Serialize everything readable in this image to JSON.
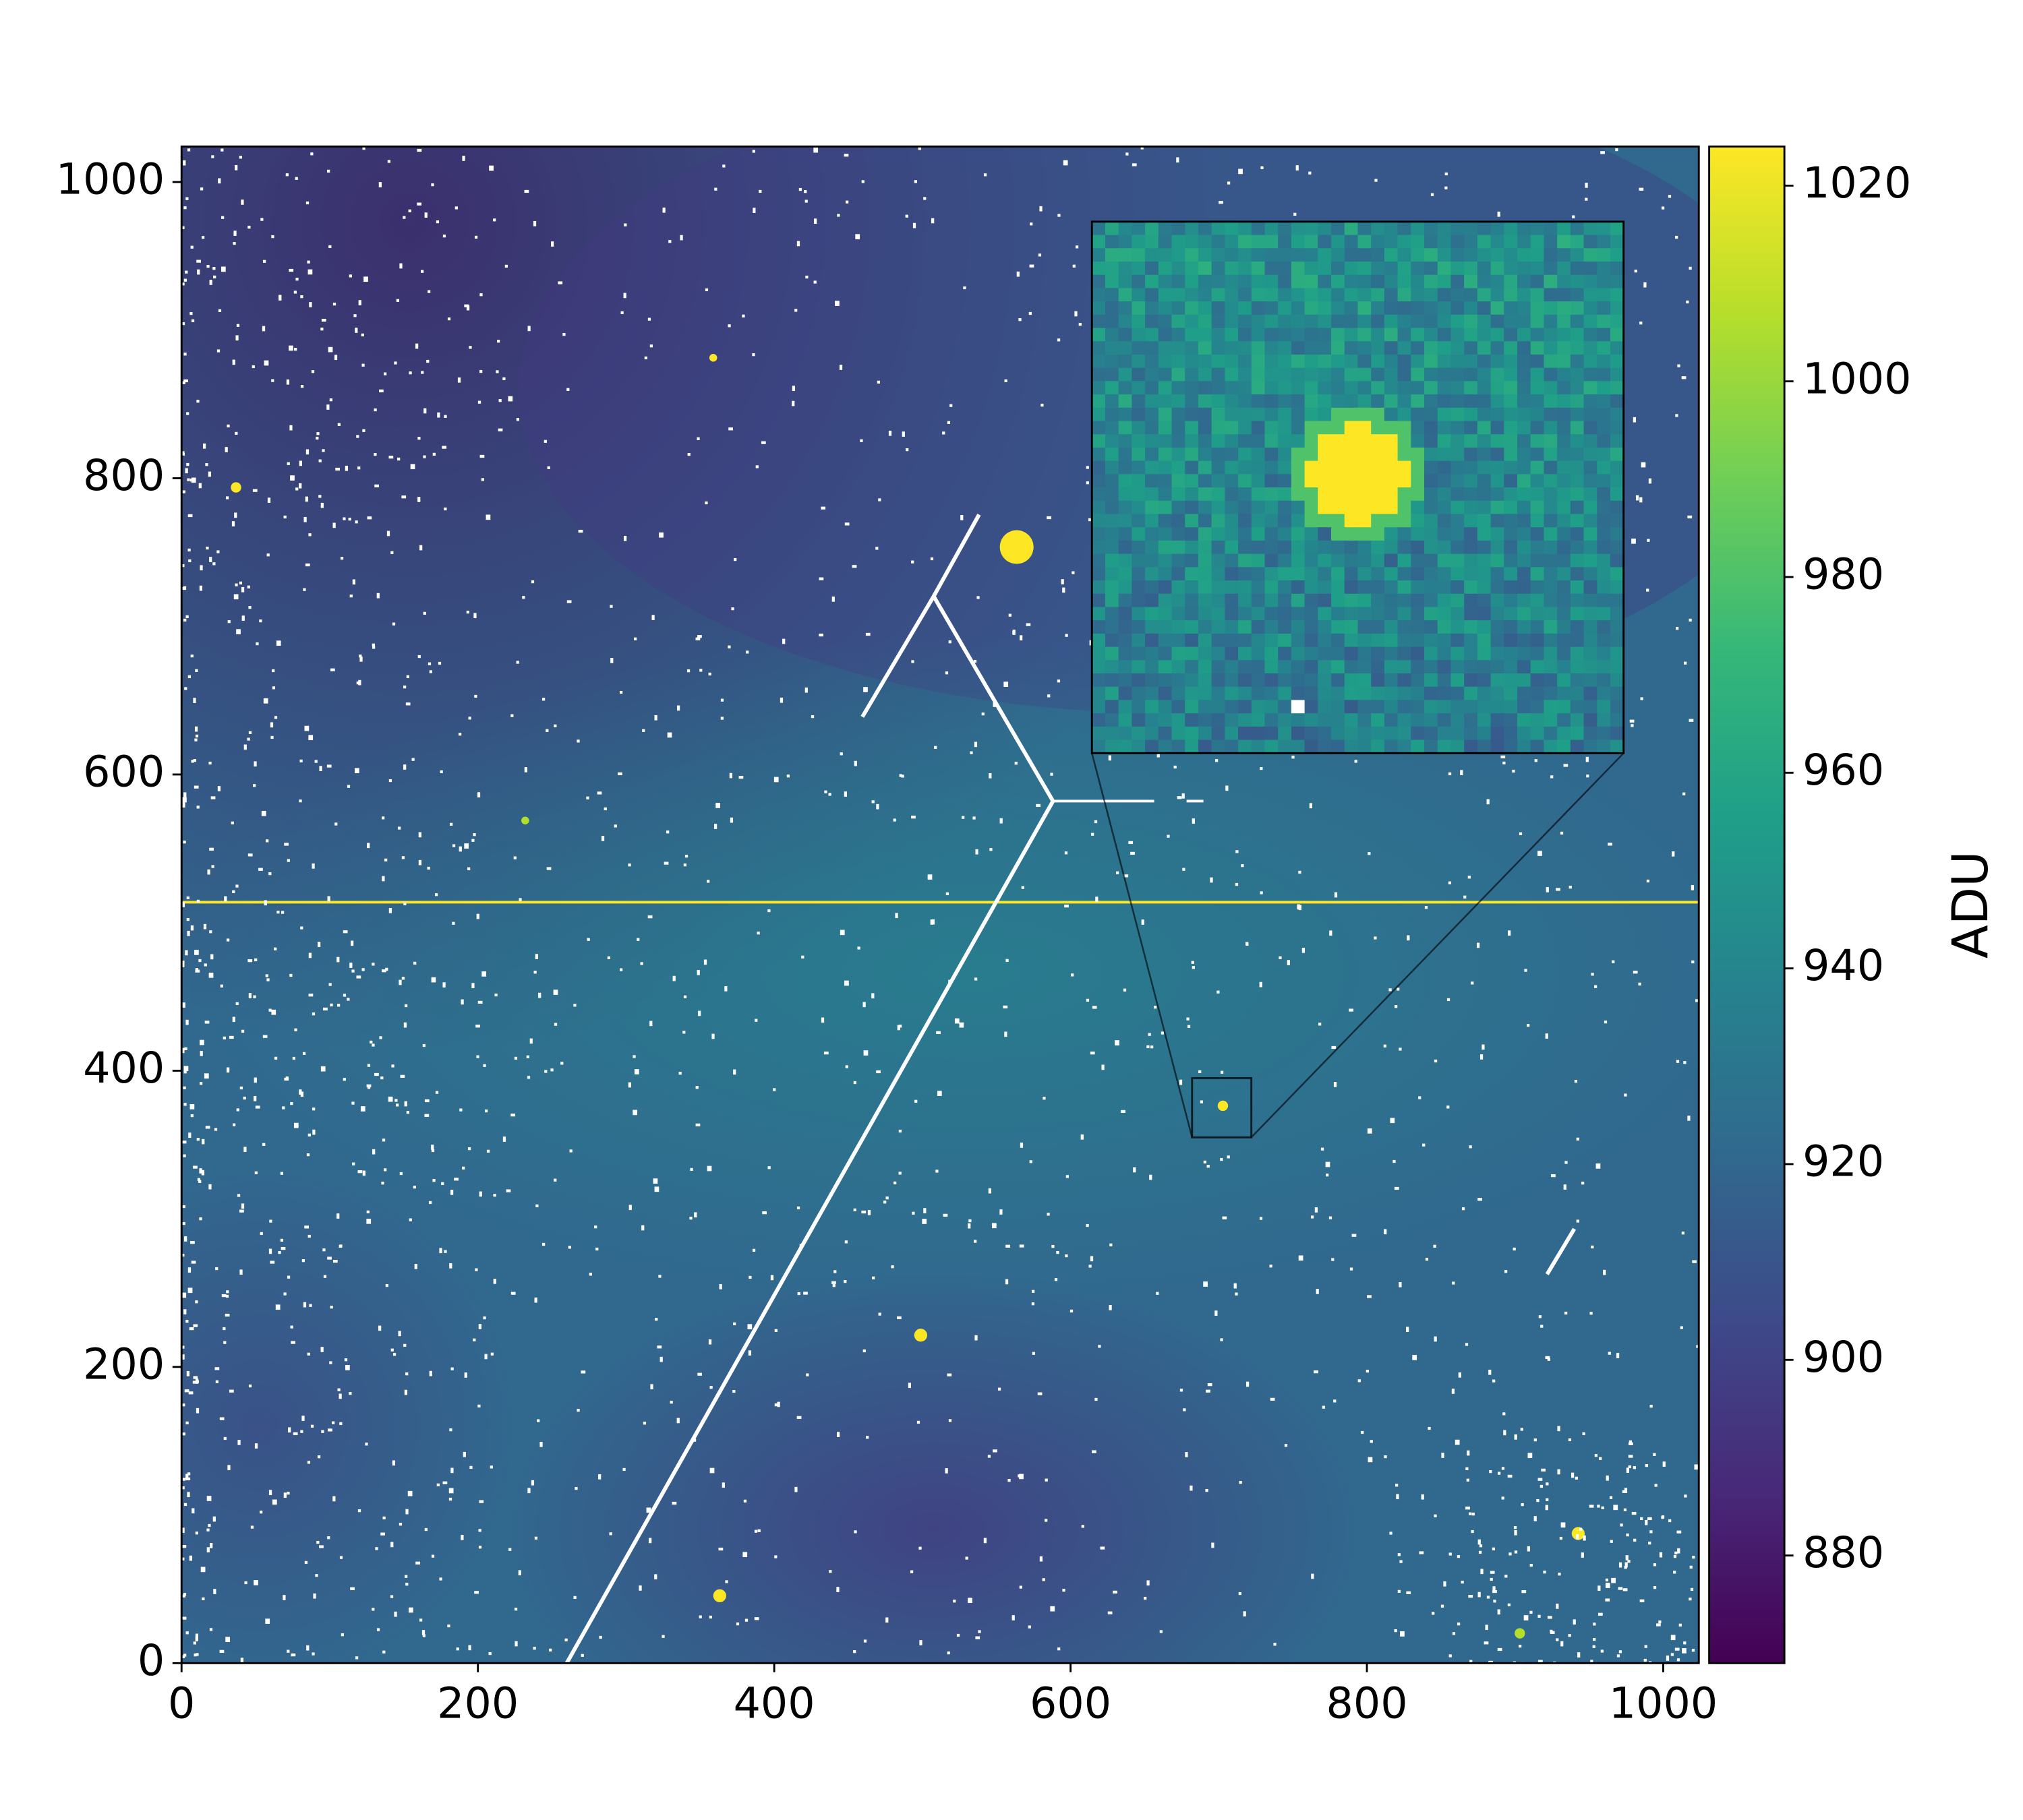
{
  "chart_data": {
    "type": "image",
    "xlim": [
      0,
      1024
    ],
    "ylim": [
      0,
      1024
    ],
    "xticks": [
      0,
      200,
      400,
      600,
      800,
      1000
    ],
    "yticks": [
      0,
      200,
      400,
      600,
      800,
      1000
    ],
    "colormap": "viridis",
    "colorbar": {
      "label": "ADU",
      "lim": [
        869,
        1024
      ],
      "ticks": [
        880,
        900,
        920,
        940,
        960,
        980,
        1000,
        1020
      ]
    },
    "inset": {
      "xlim": [
        682,
        722
      ],
      "ylim": [
        355,
        395
      ]
    }
  }
}
